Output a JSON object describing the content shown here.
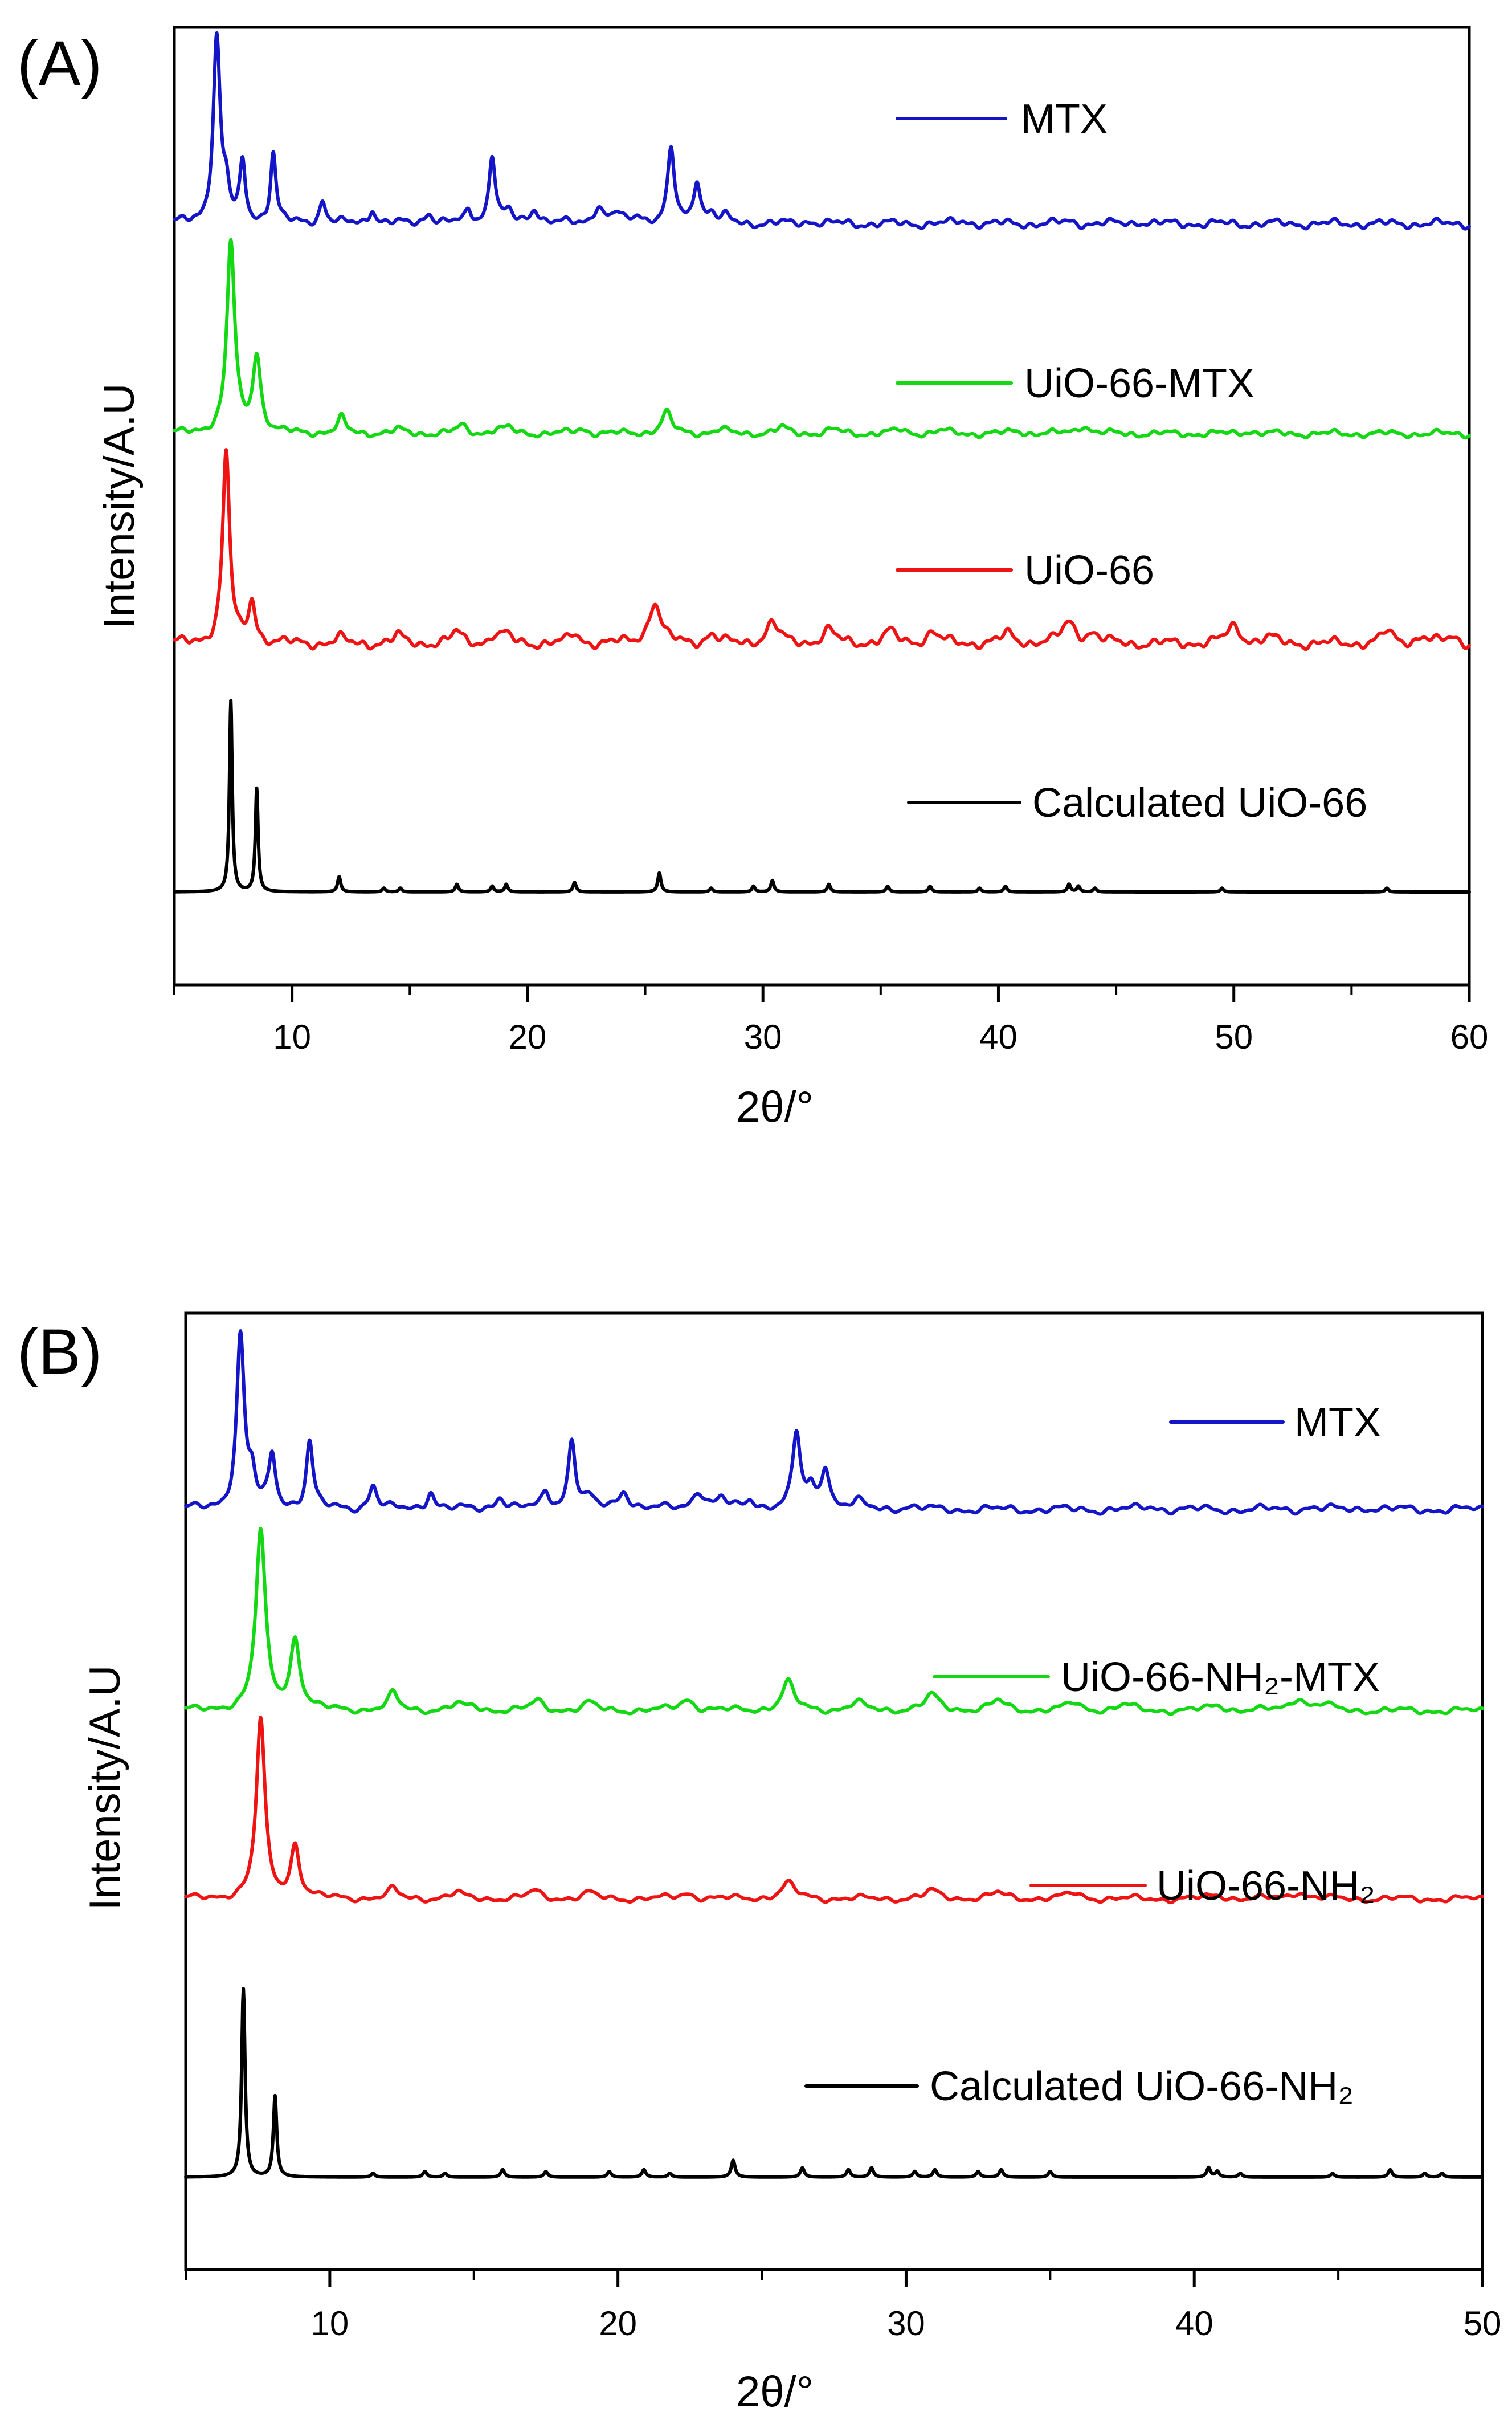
{
  "chart_data": [
    {
      "type": "line",
      "panel_label": "(A)",
      "xlabel": "2θ/°",
      "ylabel": "Intensity/A.U",
      "xlim": [
        5,
        60
      ],
      "xticks": [
        10,
        20,
        30,
        40,
        50,
        60
      ],
      "y_ticks": "none",
      "grid": false,
      "legend_placement": "right, next to each curve",
      "series": [
        {
          "name": "MTX",
          "color": "#1515c8",
          "offset": 3.45,
          "baseline": 0.05,
          "noise": 0.025,
          "peaks": [
            [
              6.8,
              0.97,
              0.18
            ],
            [
              7.2,
              0.15,
              0.15
            ],
            [
              7.9,
              0.3,
              0.14
            ],
            [
              9.2,
              0.37,
              0.14
            ],
            [
              11.3,
              0.12,
              0.16
            ],
            [
              13.4,
              0.08,
              0.16
            ],
            [
              15.8,
              0.06,
              0.2
            ],
            [
              17.5,
              0.07,
              0.16
            ],
            [
              18.5,
              0.36,
              0.16
            ],
            [
              19.2,
              0.05,
              0.2
            ],
            [
              20.3,
              0.08,
              0.22
            ],
            [
              23.0,
              0.09,
              0.25
            ],
            [
              23.8,
              0.05,
              0.2
            ],
            [
              24.7,
              0.05,
              0.2
            ],
            [
              26.1,
              0.38,
              0.17
            ],
            [
              27.2,
              0.23,
              0.17
            ],
            [
              27.8,
              0.05,
              0.2
            ],
            [
              28.4,
              0.03,
              0.2
            ],
            [
              32.0,
              0.015,
              0.3
            ],
            [
              38.5,
              0.015,
              0.3
            ],
            [
              43.0,
              0.012,
              0.3
            ],
            [
              46.0,
              0.012,
              0.3
            ]
          ]
        },
        {
          "name": "UiO-66-MTX",
          "color": "#13d813",
          "offset": 2.3,
          "baseline": 0.1,
          "noise": 0.02,
          "peaks": [
            [
              7.4,
              1.0,
              0.2
            ],
            [
              8.5,
              0.4,
              0.2
            ],
            [
              12.1,
              0.08,
              0.2
            ],
            [
              14.5,
              0.02,
              0.25
            ],
            [
              17.2,
              0.04,
              0.25
            ],
            [
              18.7,
              0.02,
              0.25
            ],
            [
              19.2,
              0.025,
              0.25
            ],
            [
              22.3,
              0.025,
              0.3
            ],
            [
              25.9,
              0.11,
              0.25
            ],
            [
              28.2,
              0.02,
              0.3
            ],
            [
              30.8,
              0.03,
              0.3
            ],
            [
              33.0,
              0.02,
              0.3
            ],
            [
              35.8,
              0.02,
              0.3
            ],
            [
              37.6,
              0.015,
              0.3
            ],
            [
              40.8,
              0.015,
              0.3
            ],
            [
              43.6,
              0.045,
              0.3
            ],
            [
              50.6,
              0.015,
              0.3
            ]
          ]
        },
        {
          "name": "UiO-66",
          "color": "#ee1414",
          "offset": 1.2,
          "baseline": 0.1,
          "noise": 0.03,
          "peaks": [
            [
              7.2,
              1.0,
              0.18
            ],
            [
              8.3,
              0.22,
              0.18
            ],
            [
              12.0,
              0.03,
              0.2
            ],
            [
              14.5,
              0.04,
              0.25
            ],
            [
              17.0,
              0.06,
              0.25
            ],
            [
              18.6,
              0.04,
              0.25
            ],
            [
              19.1,
              0.04,
              0.25
            ],
            [
              22.0,
              0.05,
              0.25
            ],
            [
              25.4,
              0.22,
              0.3
            ],
            [
              27.8,
              0.05,
              0.25
            ],
            [
              30.4,
              0.11,
              0.3
            ],
            [
              32.8,
              0.07,
              0.3
            ],
            [
              35.4,
              0.06,
              0.3
            ],
            [
              37.2,
              0.06,
              0.3
            ],
            [
              40.4,
              0.05,
              0.3
            ],
            [
              43.0,
              0.11,
              0.35
            ],
            [
              44.0,
              0.05,
              0.3
            ],
            [
              50.0,
              0.09,
              0.35
            ],
            [
              51.5,
              0.03,
              0.3
            ],
            [
              56.5,
              0.06,
              0.3
            ],
            [
              58.0,
              0.04,
              0.3
            ],
            [
              59.3,
              0.03,
              0.3
            ]
          ]
        },
        {
          "name": "Calculated UiO-66",
          "color": "#000000",
          "offset": 0,
          "baseline": 0,
          "noise": 0,
          "peaks": [
            [
              7.4,
              1.0,
              0.07
            ],
            [
              8.5,
              0.54,
              0.07
            ],
            [
              12.0,
              0.08,
              0.08
            ],
            [
              13.9,
              0.02,
              0.08
            ],
            [
              14.6,
              0.02,
              0.08
            ],
            [
              17.0,
              0.04,
              0.08
            ],
            [
              18.5,
              0.03,
              0.08
            ],
            [
              19.1,
              0.04,
              0.08
            ],
            [
              22.0,
              0.05,
              0.08
            ],
            [
              25.6,
              0.1,
              0.08
            ],
            [
              27.8,
              0.02,
              0.08
            ],
            [
              29.6,
              0.03,
              0.08
            ],
            [
              30.4,
              0.06,
              0.08
            ],
            [
              32.8,
              0.04,
              0.08
            ],
            [
              35.3,
              0.03,
              0.08
            ],
            [
              37.1,
              0.03,
              0.08
            ],
            [
              39.2,
              0.02,
              0.08
            ],
            [
              40.3,
              0.03,
              0.08
            ],
            [
              43.0,
              0.04,
              0.08
            ],
            [
              43.4,
              0.03,
              0.08
            ],
            [
              44.1,
              0.02,
              0.08
            ],
            [
              49.5,
              0.02,
              0.08
            ],
            [
              56.5,
              0.02,
              0.08
            ]
          ]
        }
      ]
    },
    {
      "type": "line",
      "panel_label": "(B)",
      "xlabel": "2θ/°",
      "ylabel": "Intensity/A.U",
      "xlim": [
        5,
        50
      ],
      "xticks": [
        10,
        20,
        30,
        40,
        50
      ],
      "y_ticks": "none",
      "grid": false,
      "legend_placement": "right, next to each curve",
      "series": [
        {
          "name": "MTX",
          "color": "#1515c8",
          "offset": 3.5,
          "baseline": 0.05,
          "noise": 0.025,
          "peaks": [
            [
              6.9,
              0.92,
              0.16
            ],
            [
              7.3,
              0.15,
              0.14
            ],
            [
              8.0,
              0.28,
              0.14
            ],
            [
              9.3,
              0.36,
              0.14
            ],
            [
              11.5,
              0.13,
              0.16
            ],
            [
              13.5,
              0.1,
              0.16
            ],
            [
              15.9,
              0.07,
              0.2
            ],
            [
              17.5,
              0.09,
              0.16
            ],
            [
              18.4,
              0.37,
              0.15
            ],
            [
              19.0,
              0.05,
              0.2
            ],
            [
              20.2,
              0.1,
              0.22
            ],
            [
              22.8,
              0.1,
              0.25
            ],
            [
              23.6,
              0.05,
              0.2
            ],
            [
              24.6,
              0.05,
              0.2
            ],
            [
              26.2,
              0.4,
              0.16
            ],
            [
              26.7,
              0.1,
              0.15
            ],
            [
              27.2,
              0.23,
              0.17
            ],
            [
              28.3,
              0.04,
              0.2
            ],
            [
              30.0,
              0.015,
              0.3
            ],
            [
              38.5,
              0.015,
              0.3
            ],
            [
              44.0,
              0.012,
              0.3
            ],
            [
              46.0,
              0.012,
              0.3
            ]
          ]
        },
        {
          "name": "UiO-66-NH₂-MTX",
          "color": "#13d813",
          "offset": 2.42,
          "baseline": 0.06,
          "noise": 0.02,
          "peaks": [
            [
              7.6,
              0.95,
              0.2
            ],
            [
              8.8,
              0.37,
              0.2
            ],
            [
              12.2,
              0.09,
              0.2
            ],
            [
              14.4,
              0.03,
              0.25
            ],
            [
              15.0,
              0.02,
              0.25
            ],
            [
              17.2,
              0.05,
              0.25
            ],
            [
              19.0,
              0.04,
              0.25
            ],
            [
              22.4,
              0.06,
              0.3
            ],
            [
              25.9,
              0.15,
              0.25
            ],
            [
              28.3,
              0.04,
              0.3
            ],
            [
              30.9,
              0.08,
              0.3
            ],
            [
              33.2,
              0.05,
              0.3
            ],
            [
              35.8,
              0.04,
              0.3
            ],
            [
              37.6,
              0.03,
              0.3
            ],
            [
              40.8,
              0.03,
              0.3
            ],
            [
              43.6,
              0.07,
              0.3
            ],
            [
              44.5,
              0.03,
              0.3
            ]
          ]
        },
        {
          "name": "UiO-66-NH₂",
          "color": "#ee1414",
          "offset": 1.42,
          "baseline": 0.06,
          "noise": 0.02,
          "peaks": [
            [
              7.6,
              0.95,
              0.18
            ],
            [
              8.8,
              0.28,
              0.18
            ],
            [
              12.2,
              0.05,
              0.2
            ],
            [
              14.4,
              0.03,
              0.25
            ],
            [
              17.1,
              0.04,
              0.25
            ],
            [
              19.0,
              0.03,
              0.25
            ],
            [
              22.4,
              0.03,
              0.3
            ],
            [
              25.9,
              0.08,
              0.3
            ],
            [
              30.9,
              0.04,
              0.3
            ],
            [
              33.2,
              0.03,
              0.3
            ],
            [
              35.8,
              0.03,
              0.3
            ],
            [
              40.8,
              0.02,
              0.3
            ],
            [
              43.6,
              0.04,
              0.3
            ]
          ]
        },
        {
          "name": "Calculated UiO-66-NH₂",
          "color": "#000000",
          "offset": 0,
          "baseline": 0,
          "noise": 0,
          "peaks": [
            [
              7.0,
              1.0,
              0.07
            ],
            [
              8.1,
              0.43,
              0.07
            ],
            [
              11.5,
              0.02,
              0.08
            ],
            [
              13.3,
              0.03,
              0.08
            ],
            [
              14.0,
              0.02,
              0.08
            ],
            [
              16.0,
              0.04,
              0.08
            ],
            [
              17.5,
              0.03,
              0.08
            ],
            [
              19.7,
              0.03,
              0.08
            ],
            [
              20.9,
              0.04,
              0.08
            ],
            [
              21.8,
              0.02,
              0.08
            ],
            [
              24.0,
              0.09,
              0.08
            ],
            [
              26.4,
              0.05,
              0.08
            ],
            [
              28.0,
              0.04,
              0.08
            ],
            [
              28.8,
              0.05,
              0.08
            ],
            [
              30.3,
              0.03,
              0.08
            ],
            [
              31.0,
              0.04,
              0.08
            ],
            [
              32.5,
              0.03,
              0.08
            ],
            [
              33.3,
              0.04,
              0.08
            ],
            [
              35.0,
              0.03,
              0.08
            ],
            [
              40.5,
              0.05,
              0.08
            ],
            [
              40.8,
              0.03,
              0.08
            ],
            [
              41.6,
              0.02,
              0.08
            ],
            [
              44.8,
              0.02,
              0.08
            ],
            [
              46.8,
              0.04,
              0.08
            ],
            [
              48.0,
              0.02,
              0.08
            ],
            [
              48.6,
              0.02,
              0.08
            ]
          ]
        }
      ]
    }
  ]
}
